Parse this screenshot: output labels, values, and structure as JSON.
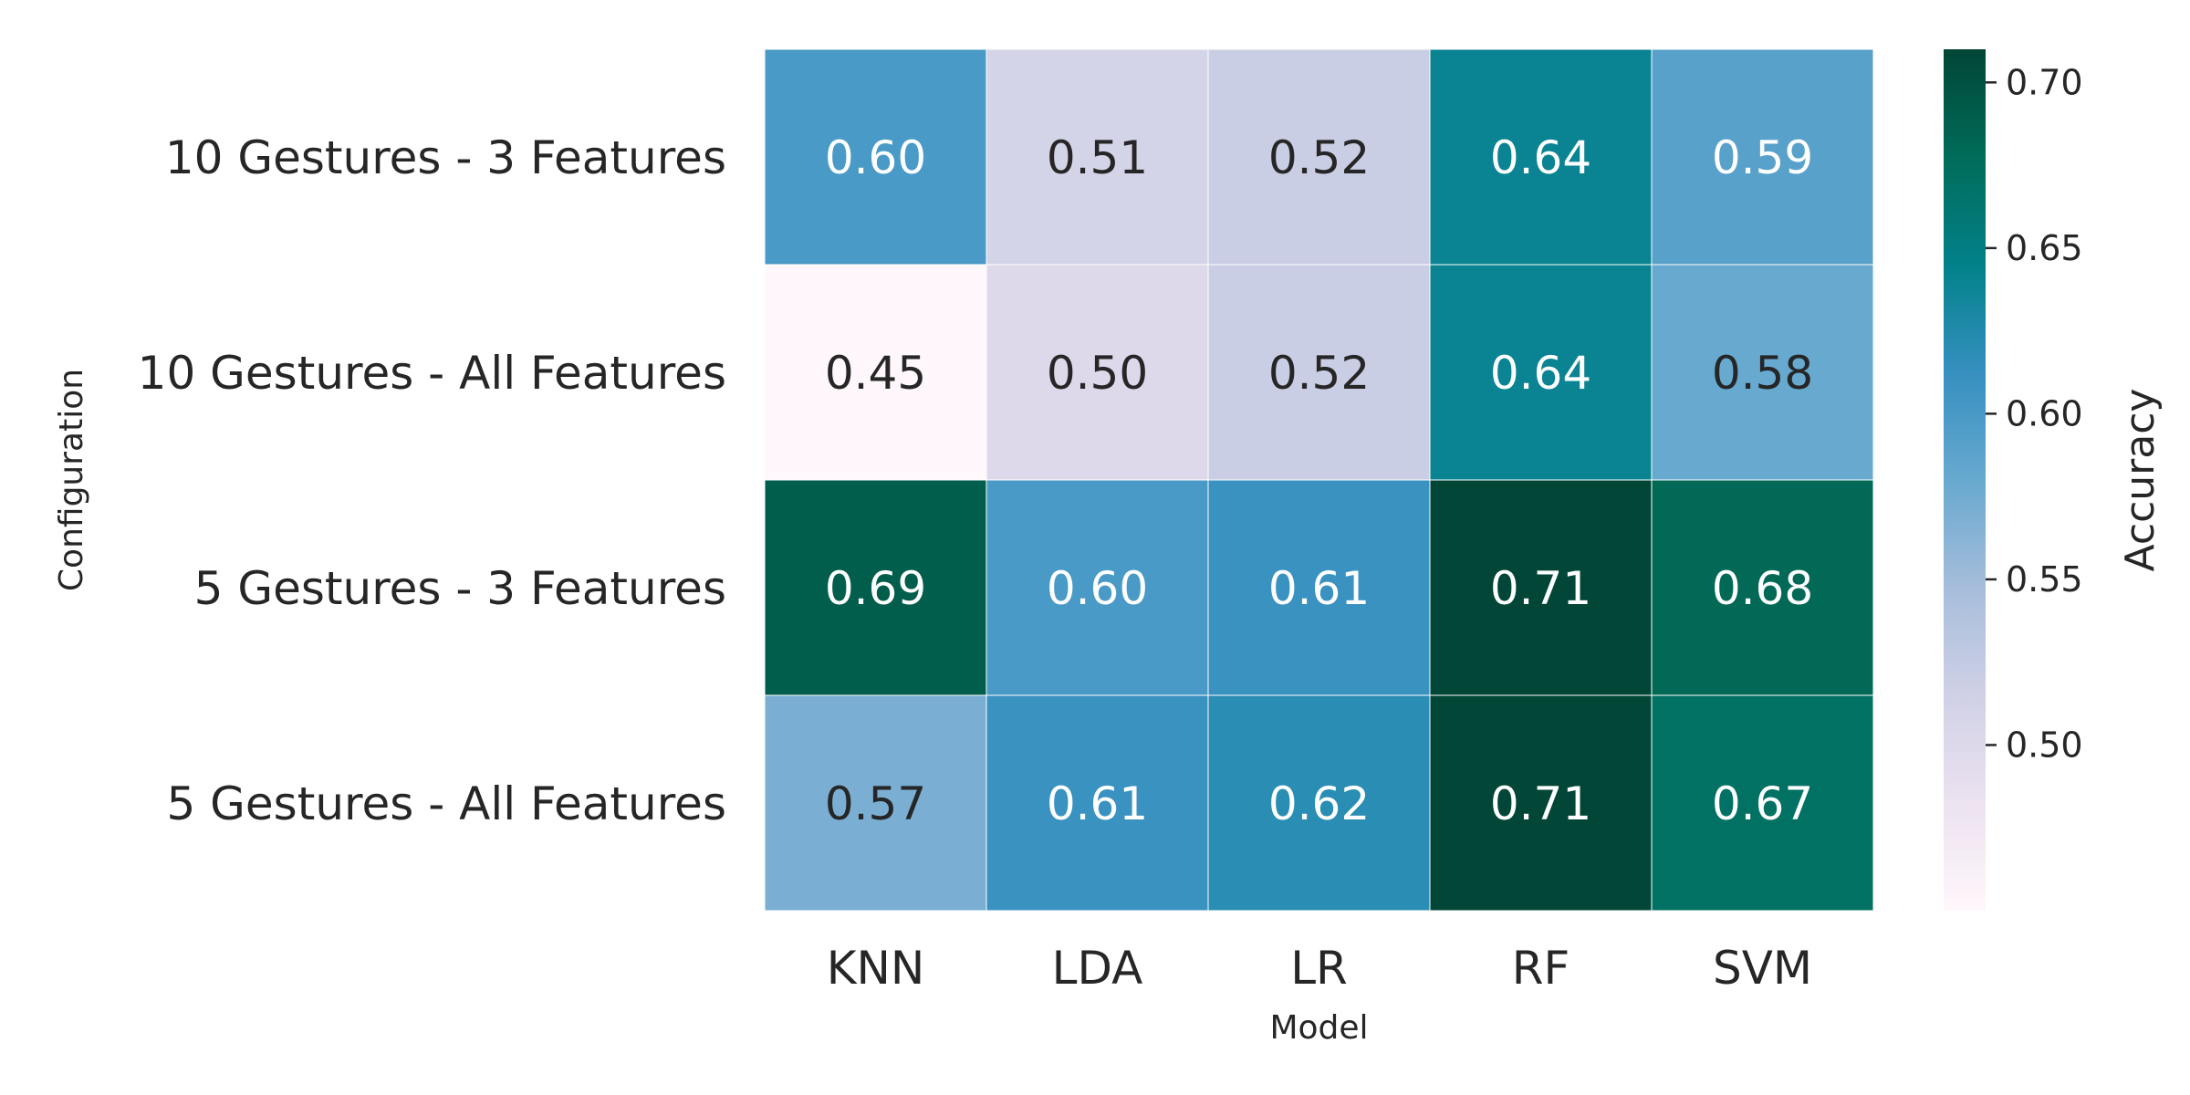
{
  "chart_data": {
    "type": "heatmap",
    "title": "",
    "xlabel": "Model",
    "ylabel": "Configuration",
    "x_categories": [
      "KNN",
      "LDA",
      "LR",
      "RF",
      "SVM"
    ],
    "y_categories": [
      "10 Gestures - 3 Features",
      "10 Gestures - All Features",
      "5 Gestures - 3 Features",
      "5 Gestures - All Features"
    ],
    "values": [
      [
        0.6,
        0.51,
        0.52,
        0.64,
        0.59
      ],
      [
        0.45,
        0.5,
        0.52,
        0.64,
        0.58
      ],
      [
        0.69,
        0.6,
        0.61,
        0.71,
        0.68
      ],
      [
        0.57,
        0.61,
        0.62,
        0.71,
        0.67
      ]
    ],
    "cell_labels": [
      [
        "0.60",
        "0.51",
        "0.52",
        "0.64",
        "0.59"
      ],
      [
        "0.45",
        "0.50",
        "0.52",
        "0.64",
        "0.58"
      ],
      [
        "0.69",
        "0.60",
        "0.61",
        "0.71",
        "0.68"
      ],
      [
        "0.57",
        "0.61",
        "0.62",
        "0.71",
        "0.67"
      ]
    ],
    "colorbar": {
      "label": "Accuracy",
      "range": [
        0.45,
        0.71
      ],
      "ticks": [
        0.5,
        0.55,
        0.6,
        0.65,
        0.7
      ],
      "tick_labels": [
        "0.50",
        "0.55",
        "0.60",
        "0.65",
        "0.70"
      ],
      "colormap": "PuBuGn",
      "color_stops": [
        "#fff7fb",
        "#ece2f0",
        "#d0d1e6",
        "#a6bddb",
        "#67a9cf",
        "#3690c0",
        "#02818a",
        "#016c59",
        "#014636"
      ]
    },
    "text_colors": {
      "dark": "#262626",
      "light": "#ffffff"
    },
    "grid": false,
    "legend": "colorbar-right"
  }
}
